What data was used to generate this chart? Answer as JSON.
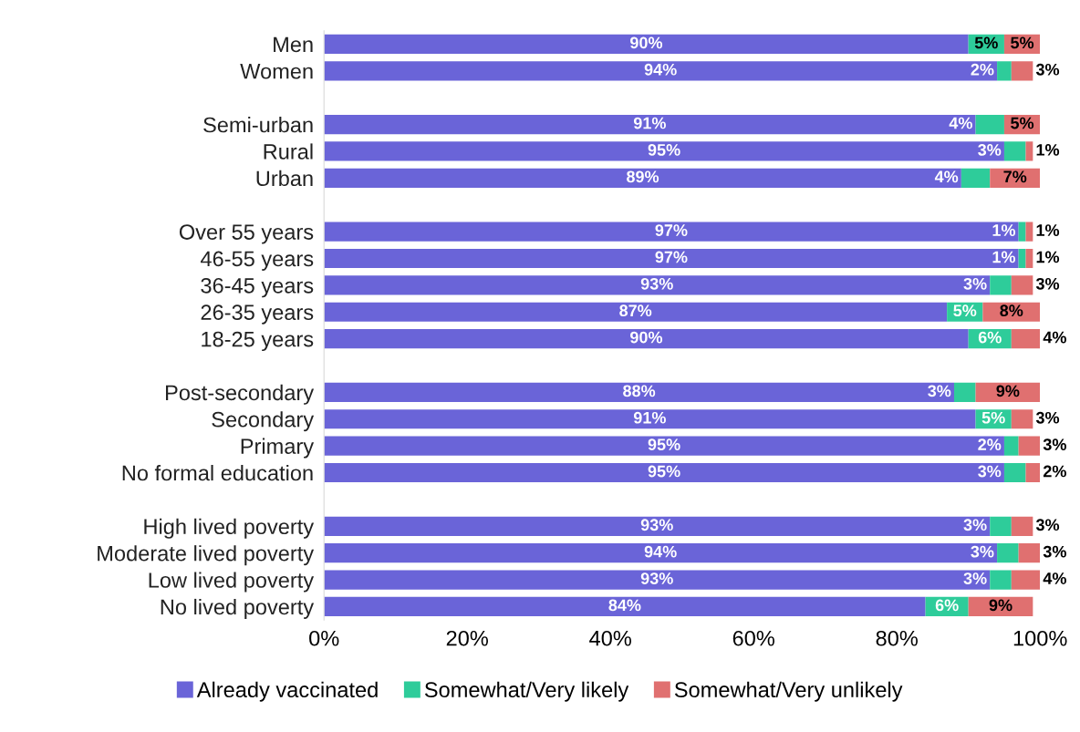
{
  "chart_data": {
    "type": "bar",
    "orientation": "horizontal",
    "stacked": true,
    "categories": [
      "Men",
      "Women",
      null,
      "Semi-urban",
      "Rural",
      "Urban",
      null,
      "Over 55 years",
      "46-55 years",
      "36-45 years",
      "26-35 years",
      "18-25 years",
      null,
      "Post-secondary",
      "Secondary",
      "Primary",
      "No formal education",
      null,
      "High lived poverty",
      "Moderate lived poverty",
      "Low lived poverty",
      "No lived poverty"
    ],
    "series": [
      {
        "name": "Already vaccinated",
        "color": "#6a64d8",
        "values": [
          90,
          94,
          null,
          91,
          95,
          89,
          null,
          97,
          97,
          93,
          87,
          90,
          null,
          88,
          91,
          95,
          95,
          null,
          93,
          94,
          93,
          84
        ],
        "value_labels": [
          "90%",
          "94%",
          null,
          "91%",
          "95%",
          "89%",
          null,
          "97%",
          "97%",
          "93%",
          "87%",
          "90%",
          null,
          "88%",
          "91%",
          "95%",
          "95%",
          null,
          "93%",
          "94%",
          "93%",
          "84%"
        ]
      },
      {
        "name": "Somewhat/Very likely",
        "color": "#2ecc9a",
        "values": [
          5,
          2,
          null,
          4,
          3,
          4,
          null,
          1,
          1,
          3,
          5,
          6,
          null,
          3,
          5,
          2,
          3,
          null,
          3,
          3,
          3,
          6
        ],
        "value_labels": [
          "5%",
          "2%",
          null,
          "4%",
          "3%",
          "4%",
          null,
          "1%",
          "1%",
          "3%",
          "5%",
          "6%",
          null,
          "3%",
          "5%",
          "2%",
          "3%",
          null,
          "3%",
          "3%",
          "3%",
          "6%"
        ]
      },
      {
        "name": "Somewhat/Very unlikely",
        "color": "#e07070",
        "values": [
          5,
          3,
          null,
          5,
          1,
          7,
          null,
          1,
          1,
          3,
          8,
          4,
          null,
          9,
          3,
          3,
          2,
          null,
          3,
          3,
          4,
          9
        ],
        "value_labels": [
          "5%",
          "3%",
          null,
          "5%",
          "1%",
          "7%",
          null,
          "1%",
          "1%",
          "3%",
          "8%",
          "4%",
          null,
          "9%",
          "3%",
          "3%",
          "2%",
          null,
          "3%",
          "3%",
          "4%",
          "9%"
        ]
      }
    ],
    "xlim": [
      0,
      100
    ],
    "xticks": [
      {
        "value": 0,
        "label": "0%"
      },
      {
        "value": 20,
        "label": "20%"
      },
      {
        "value": 40,
        "label": "40%"
      },
      {
        "value": 60,
        "label": "60%"
      },
      {
        "value": 80,
        "label": "80%"
      },
      {
        "value": 100,
        "label": "100%"
      }
    ],
    "legend": "bottom",
    "grid": false
  }
}
